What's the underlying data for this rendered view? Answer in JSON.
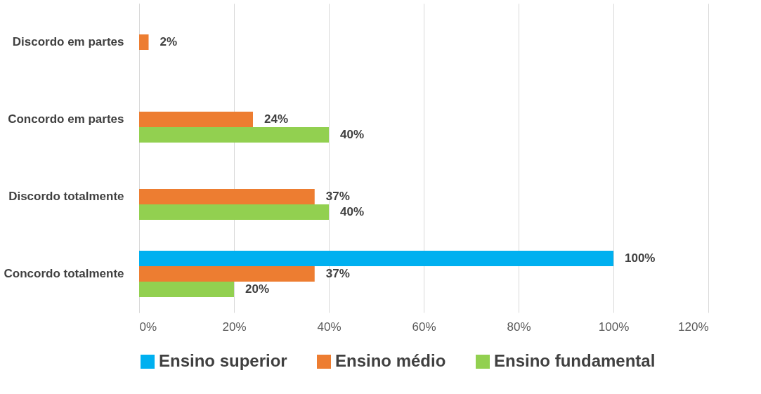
{
  "chart_data": {
    "type": "bar",
    "orientation": "horizontal",
    "categories": [
      "Discordo em partes",
      "Concordo em partes",
      "Discordo totalmente",
      "Concordo totalmente"
    ],
    "series": [
      {
        "name": "Ensino superior",
        "color": "#00b0f0",
        "values": [
          null,
          null,
          null,
          100
        ],
        "value_labels": [
          null,
          null,
          null,
          "100%"
        ]
      },
      {
        "name": "Ensino médio",
        "color": "#ed7d31",
        "values": [
          2,
          24,
          37,
          37
        ],
        "value_labels": [
          "2%",
          "24%",
          "37%",
          "37%"
        ]
      },
      {
        "name": "Ensino fundamental",
        "color": "#92d050",
        "values": [
          null,
          40,
          40,
          20
        ],
        "value_labels": [
          null,
          "40%",
          "40%",
          "20%"
        ]
      }
    ],
    "xlim": [
      0,
      120
    ],
    "xticks": [
      {
        "value": 0,
        "label": "0%"
      },
      {
        "value": 20,
        "label": "20%"
      },
      {
        "value": 40,
        "label": "40%"
      },
      {
        "value": 60,
        "label": "60%"
      },
      {
        "value": 80,
        "label": "80%"
      },
      {
        "value": 100,
        "label": "100%"
      },
      {
        "value": 120,
        "label": "120%"
      }
    ],
    "grid": "x",
    "legend": "bottom"
  }
}
